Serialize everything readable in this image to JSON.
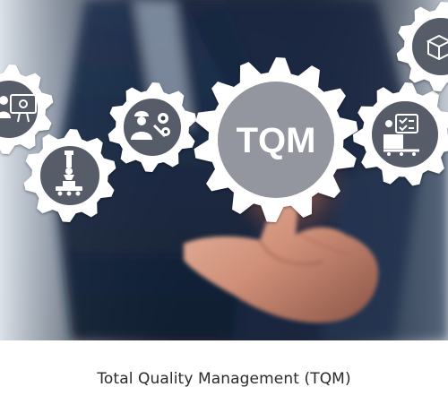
{
  "image": {
    "center_gear_label": "TQM",
    "caption": "Total Quality Management (TQM)",
    "colors": {
      "gear": "#ffffff",
      "gear_center": "#3a3f4e",
      "background_dark": "#1b2230",
      "background_light": "#cdd6e0",
      "skin": "#d9a48f",
      "glow": "#ff9a6b"
    },
    "icons": [
      "engineer-monitor-icon",
      "robot-arm-conveyor-icon",
      "worker-gears-icon",
      "tqm-center-gear-icon",
      "machine-checklist-icon",
      "package-box-icon"
    ]
  }
}
